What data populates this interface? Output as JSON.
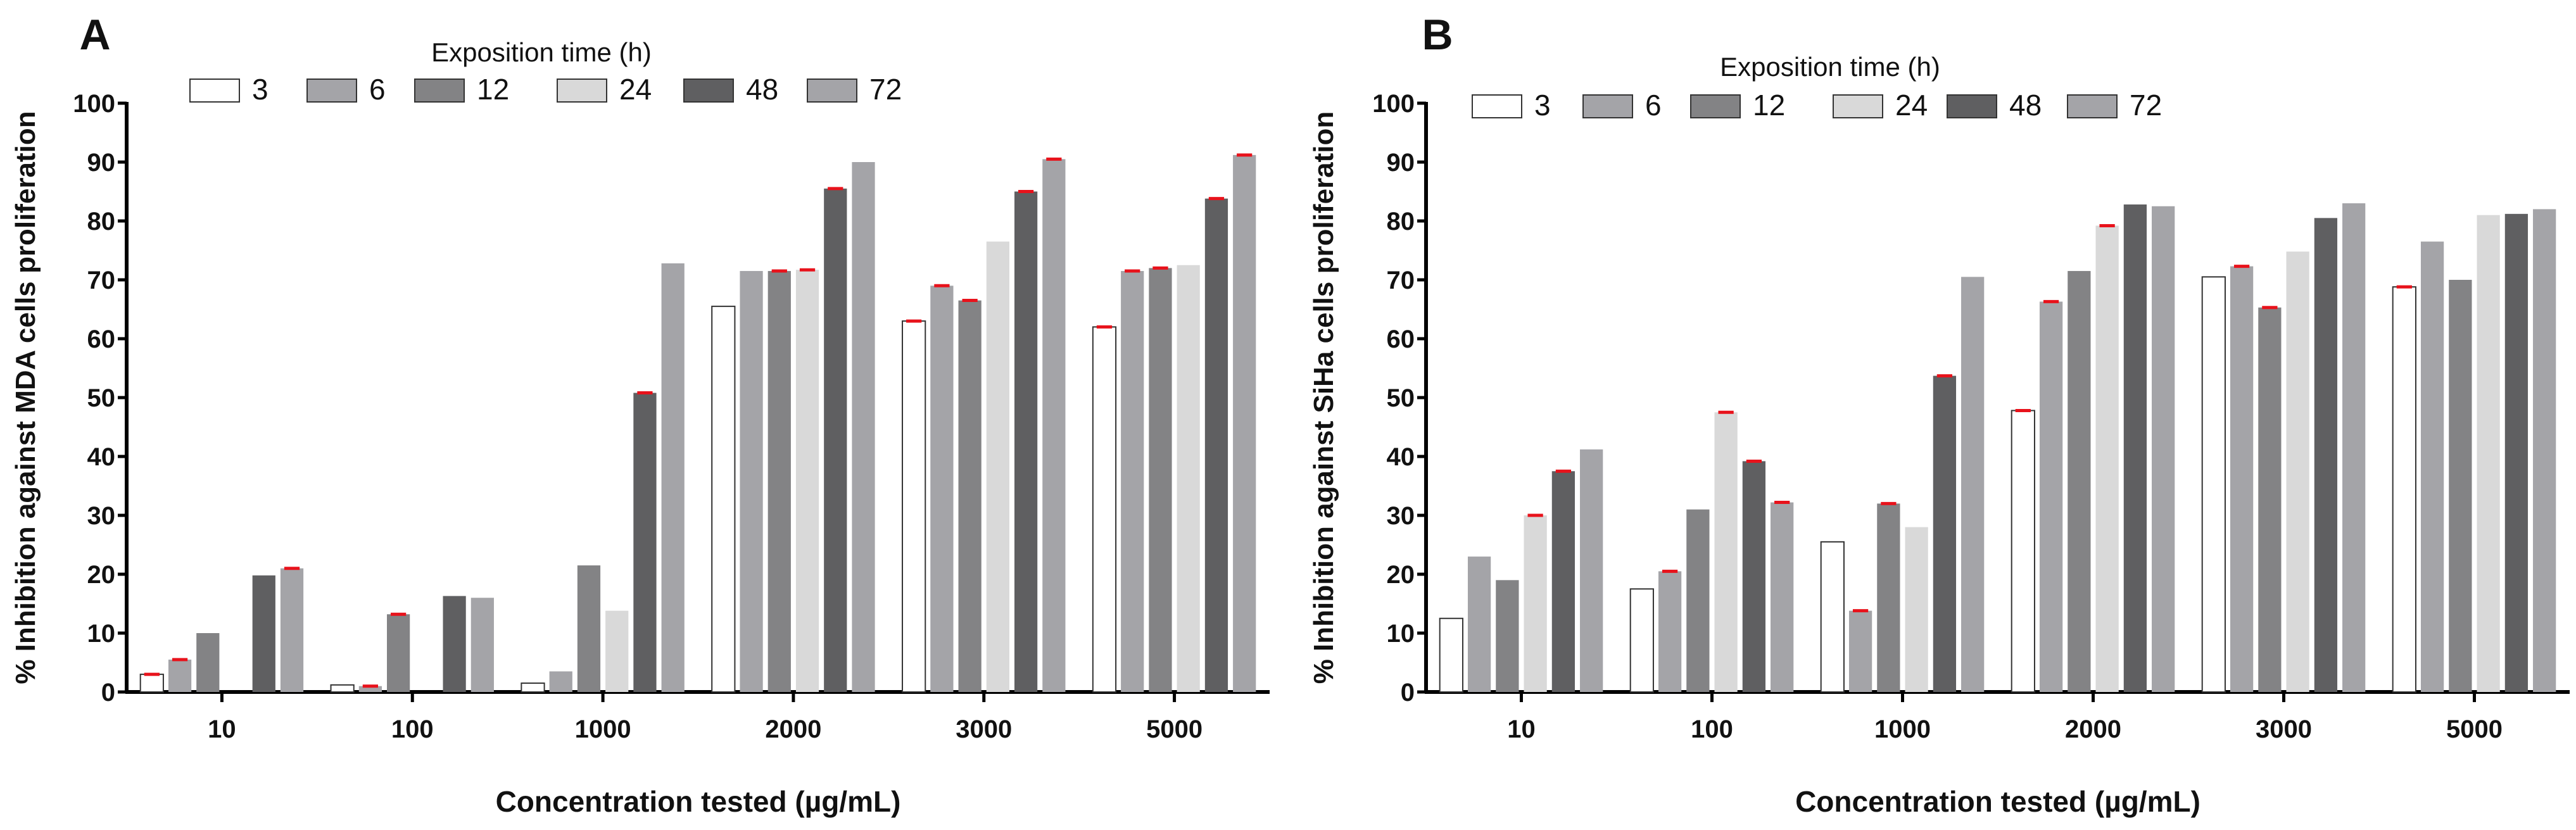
{
  "chart_data": [
    {
      "type": "bar",
      "panel_label": "A",
      "legend_title": "Exposition time (h)",
      "ylabel": "% Inhibition against MDA cells proliferation",
      "xlabel": "Concentration tested (µg/mL)",
      "ylim": [
        0,
        100
      ],
      "yticks": [
        0,
        10,
        20,
        30,
        40,
        50,
        60,
        70,
        80,
        90,
        100
      ],
      "categories": [
        "10",
        "100",
        "1000",
        "2000",
        "3000",
        "5000"
      ],
      "series": [
        {
          "name": "3",
          "color": "#ffffff",
          "values": [
            3,
            1.2,
            1.5,
            65.5,
            63,
            62
          ]
        },
        {
          "name": "6",
          "color": "#a4a4a8",
          "values": [
            5.5,
            1,
            3.5,
            71.5,
            69,
            71.5
          ]
        },
        {
          "name": "12",
          "color": "#838385",
          "values": [
            10,
            13.2,
            21.5,
            71.5,
            66.5,
            72
          ]
        },
        {
          "name": "24",
          "color": "#d9d9d9",
          "values": [
            0,
            0,
            13.8,
            71.7,
            76.5,
            72.5
          ]
        },
        {
          "name": "48",
          "color": "#5f5f61",
          "values": [
            19.8,
            16.3,
            50.8,
            85.5,
            85,
            83.8
          ]
        },
        {
          "name": "72",
          "color": "#a4a4a8",
          "values": [
            21,
            16,
            72.8,
            90,
            90.5,
            91.2
          ]
        }
      ],
      "error_markers": [
        [
          1,
          0,
          0,
          0,
          1,
          1
        ],
        [
          1,
          1,
          0,
          0,
          1,
          1
        ],
        [
          0,
          1,
          0,
          1,
          1,
          1
        ],
        [
          0,
          0,
          0,
          1,
          0,
          0
        ],
        [
          0,
          0,
          1,
          1,
          1,
          1
        ],
        [
          1,
          0,
          0,
          0,
          1,
          1
        ]
      ]
    },
    {
      "type": "bar",
      "panel_label": "B",
      "legend_title": "Exposition time (h)",
      "ylabel": "% Inhibition against SiHa cells proliferation",
      "xlabel": "Concentration tested (µg/mL)",
      "ylim": [
        0,
        100
      ],
      "yticks": [
        0,
        10,
        20,
        30,
        40,
        50,
        60,
        70,
        80,
        90,
        100
      ],
      "categories": [
        "10",
        "100",
        "1000",
        "2000",
        "3000",
        "5000"
      ],
      "series": [
        {
          "name": "3",
          "color": "#ffffff",
          "values": [
            12.5,
            17.5,
            25.5,
            47.8,
            70.5,
            68.8
          ]
        },
        {
          "name": "6",
          "color": "#a4a4a8",
          "values": [
            23,
            20.5,
            13.8,
            66.3,
            72.3,
            76.5
          ]
        },
        {
          "name": "12",
          "color": "#838385",
          "values": [
            19,
            31,
            32,
            71.5,
            65.3,
            70
          ]
        },
        {
          "name": "24",
          "color": "#d9d9d9",
          "values": [
            30,
            47.5,
            28,
            79.2,
            74.8,
            81
          ]
        },
        {
          "name": "48",
          "color": "#5f5f61",
          "values": [
            37.5,
            39.2,
            53.7,
            82.8,
            80.5,
            81.2
          ]
        },
        {
          "name": "72",
          "color": "#a4a4a8",
          "values": [
            41.2,
            32.2,
            70.5,
            82.5,
            83,
            82
          ]
        }
      ],
      "error_markers": [
        [
          0,
          0,
          0,
          1,
          0,
          1
        ],
        [
          0,
          1,
          1,
          1,
          1,
          0
        ],
        [
          0,
          0,
          1,
          0,
          1,
          0
        ],
        [
          1,
          1,
          0,
          1,
          0,
          0
        ],
        [
          1,
          1,
          1,
          0,
          0,
          0
        ],
        [
          0,
          1,
          0,
          0,
          0,
          0
        ]
      ]
    }
  ]
}
